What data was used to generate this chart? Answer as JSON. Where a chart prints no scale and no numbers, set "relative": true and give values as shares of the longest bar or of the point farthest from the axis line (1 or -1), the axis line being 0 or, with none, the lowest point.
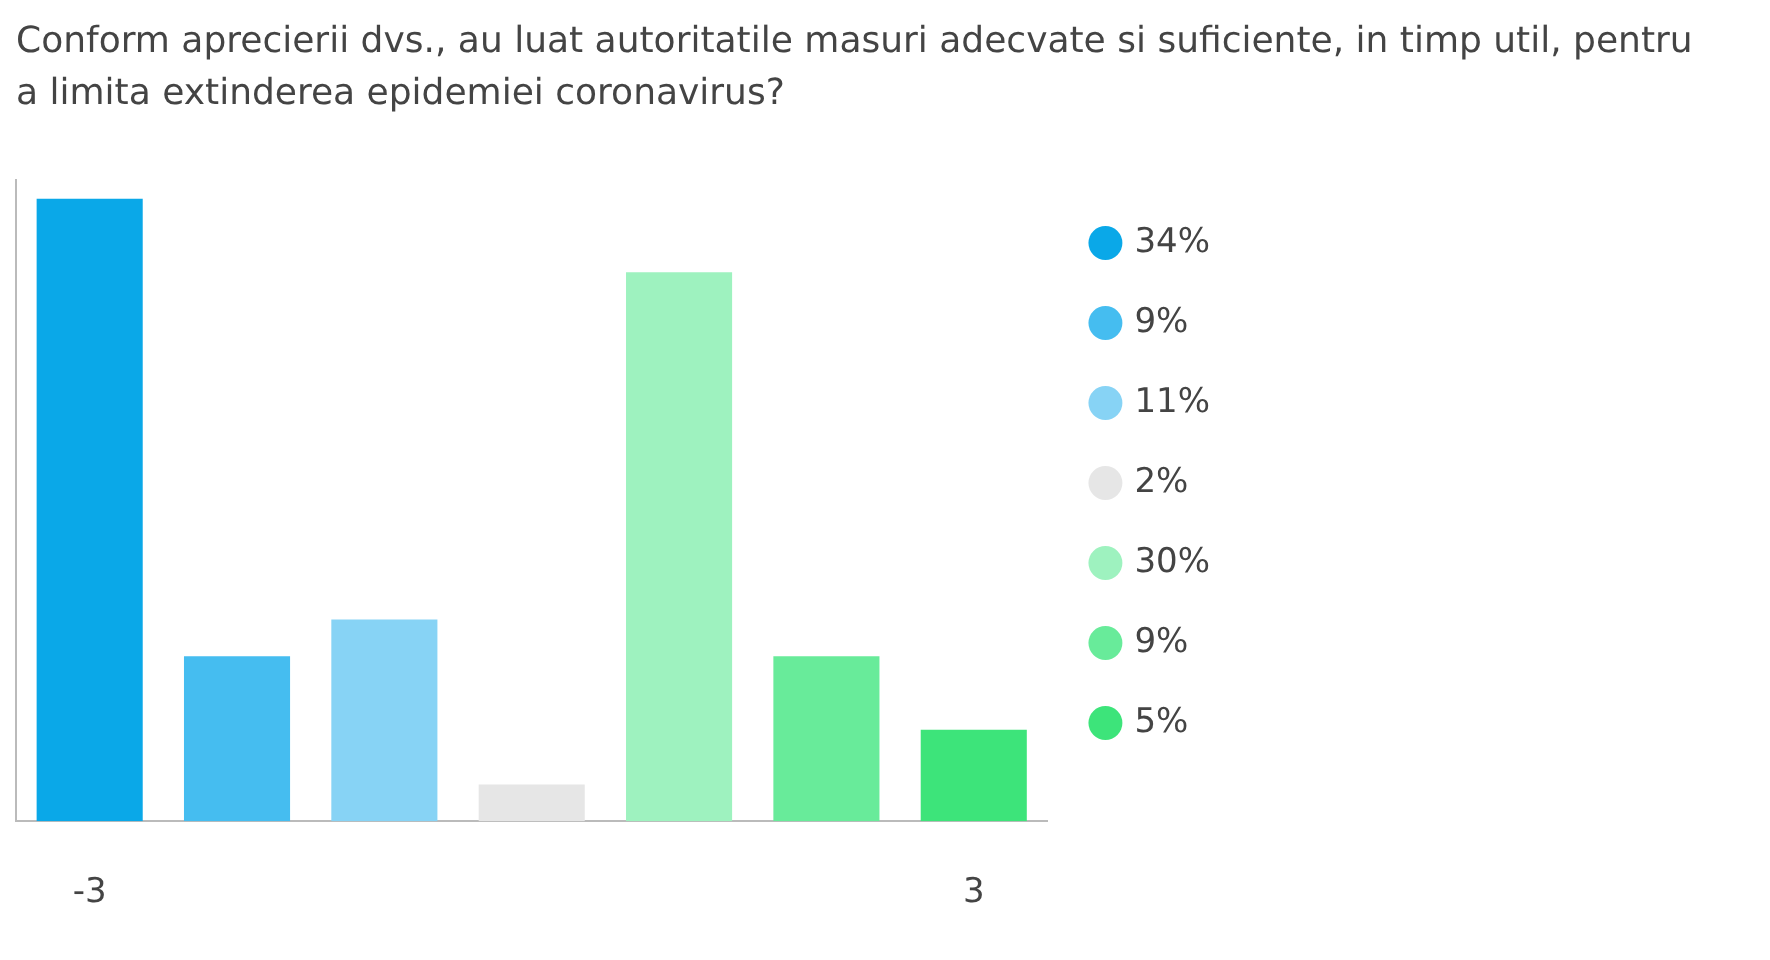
{
  "chart_data": {
    "type": "bar",
    "title": "Conform aprecierii dvs., au luat autoritatile masuri adecvate si suficiente, in timp util, pentru a limita extinderea epidemiei coronavirus?",
    "categories": [
      "-3",
      null,
      null,
      null,
      null,
      null,
      "3"
    ],
    "stacked": true,
    "relative": true,
    "legend": "right",
    "grid": false,
    "tick_labels": "x",
    "series": [
      {
        "name": "34%",
        "color": "#0aa8e8",
        "values": [
          1,
          null,
          null,
          null,
          null,
          null,
          null
        ]
      },
      {
        "name": "9%",
        "color": "#45bdf0",
        "values": [
          null,
          0.265,
          null,
          null,
          null,
          null,
          null
        ]
      },
      {
        "name": "11%",
        "color": "#87d3f5",
        "values": [
          null,
          null,
          0.324,
          null,
          null,
          null,
          null
        ]
      },
      {
        "name": "2%",
        "color": "#e6e6e6",
        "values": [
          null,
          null,
          null,
          0.059,
          null,
          null,
          null
        ]
      },
      {
        "name": "30%",
        "color": "#9ef2bf",
        "values": [
          null,
          null,
          null,
          null,
          0.882,
          null,
          null
        ]
      },
      {
        "name": "9%",
        "color": "#68eb9a",
        "values": [
          null,
          null,
          null,
          null,
          null,
          0.265,
          null
        ]
      },
      {
        "name": "5%",
        "color": "#3de47a",
        "values": [
          null,
          null,
          null,
          null,
          null,
          null,
          0.147
        ]
      }
    ]
  }
}
